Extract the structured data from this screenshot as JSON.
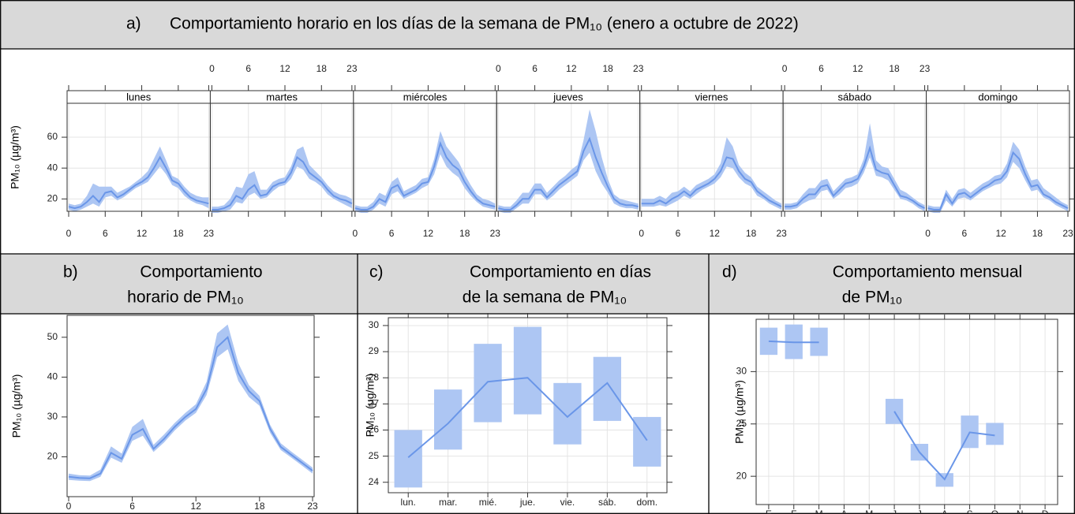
{
  "chart_data": [
    {
      "type": "facet-line",
      "label": "a)",
      "title": "Comportamiento horario en los días de la semana de PM₁₀ (enero a octubre de 2022)",
      "ylabel": "PM₁₀ (µg/m³)",
      "x": [
        0,
        1,
        2,
        3,
        4,
        5,
        6,
        7,
        8,
        9,
        10,
        11,
        12,
        13,
        14,
        15,
        16,
        17,
        18,
        19,
        20,
        21,
        22,
        23
      ],
      "xlim": [
        0,
        23
      ],
      "xticks": [
        0,
        6,
        12,
        18,
        23
      ],
      "ylim": [
        12,
        82
      ],
      "yticks": [
        20,
        40,
        60
      ],
      "grid": true,
      "color": "#6a96e8",
      "band_color": "#adc6f3",
      "facets": [
        {
          "name": "lunes",
          "values": [
            15,
            14,
            15,
            18,
            22,
            18,
            24,
            25,
            21,
            23,
            26,
            29,
            31,
            34,
            40,
            47,
            40,
            32,
            30,
            25,
            21,
            19,
            18,
            17
          ],
          "lower": [
            13,
            12,
            13,
            15,
            17,
            15,
            21,
            22,
            19,
            21,
            24,
            27,
            29,
            31,
            36,
            41,
            36,
            29,
            27,
            22,
            19,
            17,
            16,
            14
          ],
          "upper": [
            17,
            16,
            17,
            22,
            30,
            28,
            28,
            28,
            24,
            26,
            28,
            31,
            34,
            38,
            46,
            54,
            45,
            35,
            33,
            28,
            24,
            22,
            21,
            21
          ]
        },
        {
          "name": "martes",
          "values": [
            13,
            13,
            14,
            16,
            22,
            20,
            26,
            29,
            22,
            23,
            28,
            30,
            31,
            37,
            47,
            44,
            37,
            34,
            31,
            26,
            22,
            20,
            19,
            17
          ],
          "lower": [
            11,
            11,
            12,
            13,
            18,
            17,
            22,
            24,
            20,
            21,
            25,
            28,
            29,
            33,
            41,
            39,
            33,
            31,
            28,
            23,
            20,
            18,
            16,
            14
          ],
          "upper": [
            15,
            15,
            16,
            20,
            28,
            27,
            36,
            38,
            26,
            26,
            31,
            33,
            34,
            41,
            52,
            54,
            42,
            38,
            34,
            29,
            25,
            23,
            22,
            20
          ]
        },
        {
          "name": "miércoles",
          "values": [
            14,
            13,
            13,
            15,
            20,
            18,
            27,
            29,
            22,
            24,
            26,
            30,
            31,
            41,
            56,
            47,
            42,
            39,
            31,
            25,
            20,
            17,
            16,
            15
          ],
          "lower": [
            12,
            11,
            11,
            13,
            17,
            15,
            23,
            25,
            20,
            22,
            24,
            27,
            29,
            36,
            49,
            41,
            37,
            34,
            27,
            22,
            18,
            15,
            14,
            13
          ],
          "upper": [
            16,
            15,
            15,
            18,
            24,
            22,
            31,
            34,
            25,
            27,
            29,
            33,
            34,
            46,
            64,
            54,
            49,
            44,
            36,
            29,
            23,
            20,
            19,
            17
          ]
        },
        {
          "name": "jueves",
          "values": [
            14,
            13,
            13,
            16,
            20,
            20,
            26,
            26,
            21,
            25,
            29,
            32,
            35,
            38,
            51,
            59,
            47,
            37,
            28,
            20,
            17,
            16,
            16,
            15
          ],
          "lower": [
            12,
            11,
            11,
            14,
            17,
            17,
            23,
            23,
            19,
            22,
            26,
            29,
            32,
            35,
            45,
            50,
            38,
            30,
            24,
            17,
            15,
            14,
            14,
            13
          ],
          "upper": [
            16,
            15,
            15,
            19,
            24,
            24,
            30,
            30,
            24,
            28,
            32,
            35,
            39,
            42,
            58,
            78,
            64,
            47,
            33,
            23,
            20,
            19,
            18,
            17
          ]
        },
        {
          "name": "viernes",
          "values": [
            17,
            17,
            17,
            19,
            17,
            20,
            22,
            25,
            22,
            26,
            28,
            30,
            33,
            38,
            47,
            46,
            38,
            33,
            31,
            25,
            22,
            19,
            17,
            15
          ],
          "lower": [
            15,
            15,
            15,
            16,
            15,
            17,
            19,
            22,
            20,
            23,
            26,
            28,
            30,
            34,
            41,
            40,
            34,
            30,
            28,
            22,
            20,
            17,
            15,
            13
          ],
          "upper": [
            20,
            20,
            20,
            22,
            20,
            24,
            25,
            28,
            25,
            29,
            31,
            33,
            36,
            43,
            60,
            54,
            42,
            37,
            34,
            28,
            25,
            22,
            19,
            17
          ]
        },
        {
          "name": "sábado",
          "values": [
            15,
            15,
            16,
            20,
            23,
            23,
            28,
            29,
            22,
            26,
            30,
            31,
            33,
            41,
            53,
            39,
            37,
            36,
            29,
            22,
            21,
            19,
            16,
            14
          ],
          "lower": [
            13,
            13,
            14,
            17,
            19,
            20,
            25,
            26,
            20,
            23,
            27,
            28,
            30,
            37,
            47,
            35,
            34,
            32,
            26,
            20,
            19,
            17,
            14,
            12
          ],
          "upper": [
            17,
            17,
            18,
            23,
            27,
            27,
            32,
            33,
            25,
            29,
            33,
            34,
            36,
            46,
            69,
            45,
            41,
            40,
            33,
            26,
            24,
            21,
            18,
            16
          ]
        },
        {
          "name": "domingo",
          "values": [
            14,
            13,
            13,
            23,
            17,
            23,
            24,
            21,
            24,
            27,
            29,
            32,
            33,
            38,
            50,
            46,
            36,
            28,
            29,
            23,
            21,
            18,
            16,
            14
          ],
          "lower": [
            12,
            11,
            11,
            19,
            15,
            20,
            21,
            19,
            22,
            25,
            27,
            29,
            30,
            34,
            44,
            40,
            32,
            25,
            26,
            21,
            19,
            16,
            14,
            12
          ],
          "upper": [
            16,
            15,
            15,
            26,
            20,
            26,
            27,
            24,
            27,
            30,
            32,
            35,
            36,
            43,
            57,
            52,
            41,
            32,
            33,
            27,
            24,
            21,
            18,
            16
          ]
        }
      ]
    },
    {
      "type": "line",
      "label": "b)",
      "title": [
        "Comportamiento",
        "horario de PM₁₀"
      ],
      "ylabel": "PM₁₀ (µg/m³)",
      "x": [
        0,
        1,
        2,
        3,
        4,
        5,
        6,
        7,
        8,
        9,
        10,
        11,
        12,
        13,
        14,
        15,
        16,
        17,
        18,
        19,
        20,
        21,
        22,
        23
      ],
      "xlim": [
        0,
        23
      ],
      "xticks": [
        0,
        6,
        12,
        18,
        23
      ],
      "ylim": [
        10,
        55.5
      ],
      "yticks": [
        20,
        30,
        40,
        50
      ],
      "grid": false,
      "color": "#6a96e8",
      "band_color": "#adc6f3",
      "values": [
        15,
        14.7,
        14.6,
        15.8,
        21,
        19.5,
        25.5,
        27,
        22,
        24.5,
        27.5,
        30,
        32,
        37,
        47.5,
        50,
        41,
        36.5,
        34,
        27,
        22.5,
        20.5,
        18.5,
        16.5
      ],
      "lower": [
        14.2,
        14,
        13.9,
        15,
        19.8,
        18.5,
        24,
        25.3,
        21.2,
        23.6,
        26.6,
        29.1,
        31,
        35.5,
        45,
        47,
        39,
        35,
        32.8,
        26,
        21.7,
        19.8,
        17.8,
        15.8
      ],
      "upper": [
        15.8,
        15.4,
        15.3,
        16.8,
        22.6,
        20.8,
        27.5,
        29.5,
        23,
        25.6,
        28.5,
        31,
        33.2,
        38.8,
        51,
        53.2,
        43.5,
        38,
        35.3,
        28,
        23.4,
        21.3,
        19.3,
        17.3
      ]
    },
    {
      "type": "crossbar",
      "label": "c)",
      "title": [
        "Comportamiento en días",
        "de la semana de PM₁₀"
      ],
      "ylabel": "PM₁₀ (µg/m³)",
      "categories": [
        "lun.",
        "mar.",
        "mié.",
        "jue.",
        "vie.",
        "sáb.",
        "dom."
      ],
      "ylim": [
        23.6,
        30.3
      ],
      "yticks": [
        24,
        25,
        26,
        27,
        28,
        29,
        30
      ],
      "grid": true,
      "color": "#6a96e8",
      "band_color": "#adc6f3",
      "values": [
        24.95,
        26.25,
        27.85,
        28.0,
        26.5,
        27.8,
        25.6
      ],
      "lower": [
        23.8,
        25.25,
        26.3,
        26.6,
        25.45,
        26.35,
        24.6
      ],
      "upper": [
        26.0,
        27.55,
        29.3,
        29.95,
        27.8,
        28.8,
        26.5
      ]
    },
    {
      "type": "crossbar",
      "label": "d)",
      "title": [
        "Comportamiento mensual",
        "de PM₁₀"
      ],
      "ylabel": "PM₁₀ (µg/m³)",
      "categories": [
        "E",
        "F",
        "M",
        "A",
        "M",
        "J",
        "J",
        "A",
        "S",
        "O",
        "N",
        "D"
      ],
      "ylim": [
        17.3,
        35
      ],
      "yticks": [
        20,
        25,
        30
      ],
      "grid": true,
      "color": "#6a96e8",
      "band_color": "#adc6f3",
      "values": [
        32.9,
        32.8,
        32.8,
        null,
        null,
        26.2,
        22.3,
        19.7,
        24.2,
        23.9,
        null,
        null
      ],
      "lower": [
        31.6,
        31.2,
        31.5,
        null,
        null,
        25.0,
        21.5,
        19.0,
        22.7,
        23.0,
        null,
        null
      ],
      "upper": [
        34.2,
        34.5,
        34.2,
        null,
        null,
        27.4,
        23.1,
        20.3,
        25.8,
        25.1,
        null,
        null
      ]
    }
  ]
}
